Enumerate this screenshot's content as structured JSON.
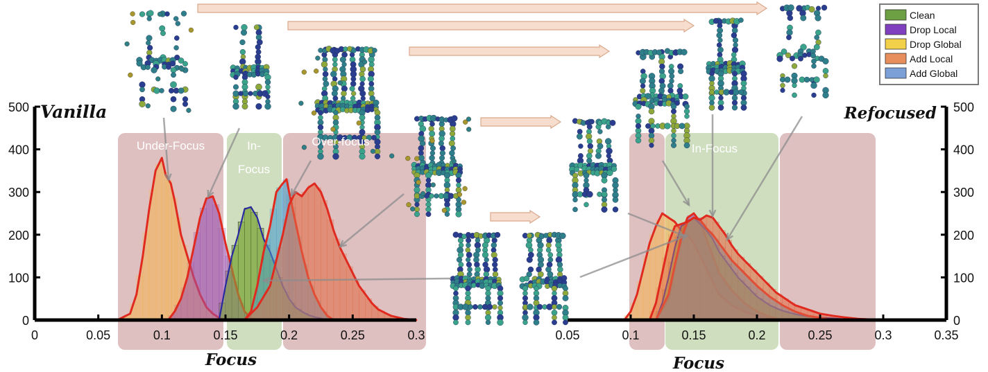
{
  "legend": [
    {
      "name": "Clean",
      "color": "#6ca043"
    },
    {
      "name": "Drop Local",
      "color": "#7f3fbf"
    },
    {
      "name": "Drop Global",
      "color": "#f2d04a"
    },
    {
      "name": "Add Local",
      "color": "#e88e5c"
    },
    {
      "name": "Add Global",
      "color": "#7ba0d8"
    }
  ],
  "colors": {
    "region_red": "#b06a6c",
    "region_green": "#8fb06a",
    "curve_red": "#e02a1f",
    "curve_blue": "#2a2aa0",
    "bar_edge": "#2f3a2a",
    "arrow_fill": "#f7ddcd",
    "arrow_stroke": "#d9a98c",
    "pointer": "#8c8c8c",
    "axis": "#000000"
  },
  "chart_data": [
    {
      "type": "histogram",
      "title": "Vanilla",
      "xlabel": "Focus",
      "ylabel": "",
      "xlim": [
        0,
        0.3
      ],
      "ylim": [
        0,
        500
      ],
      "xticks": [
        "0",
        "0.05",
        "0.1",
        "0.15",
        "0.2",
        "0.25",
        "0.3"
      ],
      "yticks": [
        "0",
        "100",
        "200",
        "300",
        "400",
        "500"
      ],
      "regions": [
        {
          "label": "Under-Focus",
          "x_range": [
            0.07,
            0.12
          ],
          "kind": "bad"
        },
        {
          "label_line1": "In-",
          "label_line2": "Focus",
          "x_range": [
            0.15,
            0.18
          ],
          "kind": "good"
        },
        {
          "label": "Over-focus",
          "x_range": [
            0.2,
            0.26
          ],
          "kind": "bad"
        }
      ],
      "series": [
        {
          "name": "Drop Global",
          "color": "#f2b45a",
          "points": [
            [
              0.065,
              0
            ],
            [
              0.075,
              15
            ],
            [
              0.08,
              60
            ],
            [
              0.085,
              150
            ],
            [
              0.09,
              260
            ],
            [
              0.095,
              350
            ],
            [
              0.1,
              380
            ],
            [
              0.103,
              340
            ],
            [
              0.107,
              320
            ],
            [
              0.11,
              280
            ],
            [
              0.115,
              200
            ],
            [
              0.12,
              150
            ],
            [
              0.125,
              100
            ],
            [
              0.13,
              60
            ],
            [
              0.135,
              30
            ],
            [
              0.14,
              15
            ],
            [
              0.145,
              5
            ],
            [
              0.15,
              0
            ]
          ]
        },
        {
          "name": "Drop Local",
          "color": "#9b54b0",
          "points": [
            [
              0.105,
              0
            ],
            [
              0.11,
              20
            ],
            [
              0.115,
              50
            ],
            [
              0.12,
              100
            ],
            [
              0.125,
              170
            ],
            [
              0.13,
              240
            ],
            [
              0.135,
              285
            ],
            [
              0.14,
              290
            ],
            [
              0.145,
              250
            ],
            [
              0.15,
              180
            ],
            [
              0.155,
              120
            ],
            [
              0.16,
              60
            ],
            [
              0.165,
              20
            ],
            [
              0.17,
              5
            ],
            [
              0.175,
              0
            ]
          ]
        },
        {
          "name": "Clean",
          "color": "#7faa3f",
          "bars": true,
          "points": [
            [
              0.145,
              0
            ],
            [
              0.15,
              80
            ],
            [
              0.155,
              150
            ],
            [
              0.16,
              200
            ],
            [
              0.165,
              260
            ],
            [
              0.17,
              265
            ],
            [
              0.175,
              240
            ],
            [
              0.18,
              190
            ],
            [
              0.185,
              160
            ],
            [
              0.19,
              120
            ],
            [
              0.195,
              80
            ],
            [
              0.2,
              50
            ],
            [
              0.205,
              30
            ],
            [
              0.21,
              20
            ],
            [
              0.215,
              12
            ],
            [
              0.22,
              7
            ],
            [
              0.225,
              4
            ],
            [
              0.23,
              0
            ]
          ]
        },
        {
          "name": "Add Global",
          "color": "#4e9fc9",
          "points": [
            [
              0.165,
              0
            ],
            [
              0.17,
              20
            ],
            [
              0.175,
              80
            ],
            [
              0.18,
              160
            ],
            [
              0.185,
              220
            ],
            [
              0.19,
              300
            ],
            [
              0.195,
              320
            ],
            [
              0.198,
              330
            ],
            [
              0.2,
              300
            ],
            [
              0.205,
              230
            ],
            [
              0.21,
              160
            ],
            [
              0.215,
              100
            ],
            [
              0.22,
              60
            ],
            [
              0.225,
              30
            ],
            [
              0.23,
              10
            ],
            [
              0.235,
              0
            ]
          ]
        },
        {
          "name": "Add Local",
          "color": "#e2704c",
          "points": [
            [
              0.165,
              0
            ],
            [
              0.175,
              30
            ],
            [
              0.185,
              80
            ],
            [
              0.19,
              140
            ],
            [
              0.195,
              200
            ],
            [
              0.2,
              270
            ],
            [
              0.205,
              300
            ],
            [
              0.21,
              290
            ],
            [
              0.215,
              310
            ],
            [
              0.22,
              320
            ],
            [
              0.225,
              300
            ],
            [
              0.23,
              260
            ],
            [
              0.235,
              210
            ],
            [
              0.24,
              170
            ],
            [
              0.245,
              140
            ],
            [
              0.25,
              110
            ],
            [
              0.255,
              80
            ],
            [
              0.26,
              60
            ],
            [
              0.265,
              40
            ],
            [
              0.27,
              25
            ],
            [
              0.28,
              10
            ],
            [
              0.29,
              3
            ],
            [
              0.3,
              0
            ]
          ]
        }
      ]
    },
    {
      "type": "histogram",
      "title": "Refocused",
      "xlabel": "Focus",
      "ylabel": "",
      "xlim": [
        0.05,
        0.35
      ],
      "ylim": [
        0,
        500
      ],
      "xticks": [
        "0.05",
        "0.1",
        "0.15",
        "0.2",
        "0.25",
        "0.3",
        "0.35"
      ],
      "yticks": [
        "0",
        "100",
        "200",
        "300",
        "400",
        "500"
      ],
      "regions": [
        {
          "label": "",
          "x_range": [
            0.1,
            0.125
          ],
          "kind": "bad"
        },
        {
          "label": "In-Focus",
          "x_range": [
            0.125,
            0.215
          ],
          "kind": "good"
        },
        {
          "label": "",
          "x_range": [
            0.215,
            0.29
          ],
          "kind": "bad"
        }
      ],
      "series": [
        {
          "name": "Drop Global",
          "color": "#f2b45a",
          "points": [
            [
              0.095,
              0
            ],
            [
              0.1,
              20
            ],
            [
              0.105,
              60
            ],
            [
              0.11,
              120
            ],
            [
              0.115,
              180
            ],
            [
              0.12,
              220
            ],
            [
              0.125,
              250
            ],
            [
              0.13,
              240
            ],
            [
              0.135,
              230
            ],
            [
              0.14,
              210
            ],
            [
              0.145,
              200
            ],
            [
              0.15,
              180
            ],
            [
              0.155,
              150
            ],
            [
              0.16,
              120
            ],
            [
              0.165,
              90
            ],
            [
              0.17,
              60
            ],
            [
              0.18,
              35
            ],
            [
              0.19,
              20
            ],
            [
              0.2,
              10
            ],
            [
              0.21,
              5
            ],
            [
              0.22,
              0
            ]
          ]
        },
        {
          "name": "Drop Local",
          "color": "#9b54b0",
          "points": [
            [
              0.12,
              0
            ],
            [
              0.13,
              50
            ],
            [
              0.135,
              120
            ],
            [
              0.14,
              200
            ],
            [
              0.145,
              240
            ],
            [
              0.15,
              250
            ],
            [
              0.155,
              230
            ],
            [
              0.16,
              190
            ],
            [
              0.165,
              150
            ],
            [
              0.17,
              110
            ],
            [
              0.18,
              70
            ],
            [
              0.19,
              40
            ],
            [
              0.2,
              20
            ],
            [
              0.21,
              8
            ],
            [
              0.22,
              0
            ]
          ]
        },
        {
          "name": "Clean",
          "color": "#7faa3f",
          "bars": true,
          "points": [
            [
              0.12,
              0
            ],
            [
              0.125,
              40
            ],
            [
              0.13,
              100
            ],
            [
              0.135,
              170
            ],
            [
              0.14,
              220
            ],
            [
              0.145,
              230
            ],
            [
              0.15,
              240
            ],
            [
              0.155,
              225
            ],
            [
              0.16,
              210
            ],
            [
              0.165,
              190
            ],
            [
              0.17,
              160
            ],
            [
              0.175,
              140
            ],
            [
              0.18,
              120
            ],
            [
              0.185,
              100
            ],
            [
              0.19,
              85
            ],
            [
              0.195,
              70
            ],
            [
              0.2,
              55
            ],
            [
              0.205,
              45
            ],
            [
              0.21,
              35
            ],
            [
              0.215,
              28
            ],
            [
              0.22,
              22
            ],
            [
              0.225,
              18
            ],
            [
              0.23,
              14
            ],
            [
              0.235,
              11
            ],
            [
              0.24,
              9
            ],
            [
              0.25,
              6
            ],
            [
              0.26,
              4
            ],
            [
              0.27,
              2
            ],
            [
              0.28,
              0
            ]
          ]
        },
        {
          "name": "Add Global",
          "color": "#4e9fc9",
          "points": [
            [
              0.12,
              0
            ],
            [
              0.13,
              60
            ],
            [
              0.135,
              130
            ],
            [
              0.14,
              190
            ],
            [
              0.145,
              230
            ],
            [
              0.15,
              240
            ],
            [
              0.155,
              235
            ],
            [
              0.16,
              215
            ],
            [
              0.165,
              200
            ],
            [
              0.17,
              180
            ],
            [
              0.175,
              160
            ],
            [
              0.18,
              140
            ],
            [
              0.19,
              110
            ],
            [
              0.2,
              80
            ],
            [
              0.21,
              55
            ],
            [
              0.22,
              35
            ],
            [
              0.23,
              20
            ],
            [
              0.24,
              10
            ],
            [
              0.25,
              5
            ],
            [
              0.26,
              0
            ]
          ]
        },
        {
          "name": "Add Local",
          "color": "#e2704c",
          "points": [
            [
              0.115,
              0
            ],
            [
              0.12,
              40
            ],
            [
              0.125,
              110
            ],
            [
              0.13,
              180
            ],
            [
              0.135,
              220
            ],
            [
              0.14,
              225
            ],
            [
              0.145,
              230
            ],
            [
              0.15,
              240
            ],
            [
              0.155,
              235
            ],
            [
              0.16,
              245
            ],
            [
              0.165,
              240
            ],
            [
              0.17,
              220
            ],
            [
              0.175,
              200
            ],
            [
              0.18,
              175
            ],
            [
              0.185,
              155
            ],
            [
              0.19,
              140
            ],
            [
              0.195,
              125
            ],
            [
              0.2,
              110
            ],
            [
              0.205,
              95
            ],
            [
              0.21,
              80
            ],
            [
              0.215,
              65
            ],
            [
              0.22,
              55
            ],
            [
              0.225,
              45
            ],
            [
              0.23,
              35
            ],
            [
              0.24,
              25
            ],
            [
              0.25,
              15
            ],
            [
              0.26,
              10
            ],
            [
              0.27,
              6
            ],
            [
              0.28,
              3
            ],
            [
              0.3,
              0
            ]
          ]
        }
      ]
    }
  ]
}
